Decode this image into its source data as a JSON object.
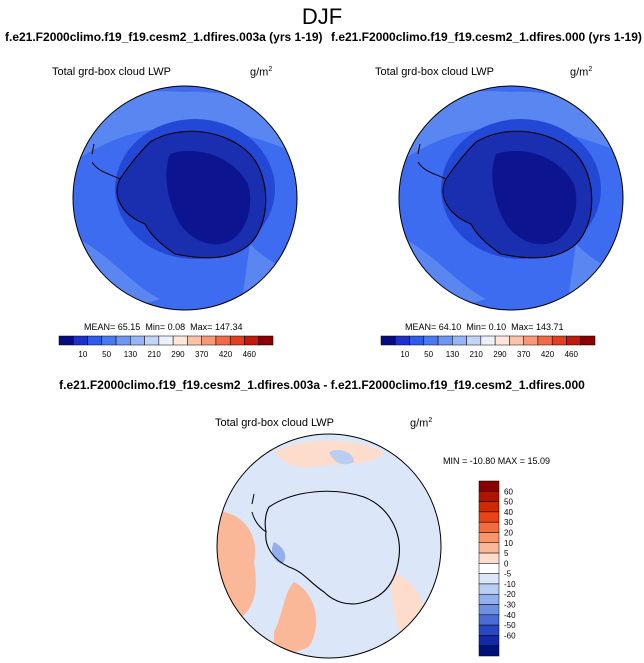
{
  "title": "DJF",
  "panels": {
    "left": {
      "case": "f.e21.F2000climo.f19_f19.cesm2_1.dfires.003a (yrs 1-19)",
      "variable": "Total grd-box cloud LWP",
      "units_base": "g/m",
      "units_exp": "2",
      "mean_label": "MEAN=",
      "mean": "65.15",
      "min_label": "Min=",
      "min": "0.08",
      "max_label": "Max=",
      "max": "147.34"
    },
    "right": {
      "case": "f.e21.F2000climo.f19_f19.cesm2_1.dfires.000 (yrs 1-19)",
      "variable": "Total grd-box cloud LWP",
      "units_base": "g/m",
      "units_exp": "2",
      "mean_label": "MEAN=",
      "mean": "64.10",
      "min_label": "Min=",
      "min": "0.10",
      "max_label": "Max=",
      "max": "143.71"
    },
    "diff": {
      "case": "f.e21.F2000climo.f19_f19.cesm2_1.dfires.003a - f.e21.F2000climo.f19_f19.cesm2_1.dfires.000",
      "variable": "Total grd-box cloud LWP",
      "units_base": "g/m",
      "units_exp": "2",
      "stats": "MIN = -10.80 MAX =  15.09"
    }
  },
  "chart_data": [
    {
      "type": "heatmap",
      "projection": "south-polar stereographic",
      "title": "Total grd-box cloud LWP",
      "colorbar": {
        "orientation": "horizontal",
        "levels": [
          "10",
          "50",
          "130",
          "210",
          "290",
          "370",
          "420",
          "460"
        ],
        "colors": [
          "#0a0a80",
          "#1e30c8",
          "#2f5be8",
          "#4a78f0",
          "#6d95f2",
          "#97b4f4",
          "#c3d4f6",
          "#ecf0f8",
          "#fde6dc",
          "#fbc2aa",
          "#f79878",
          "#f06a48",
          "#e04020",
          "#c01a0a",
          "#8a0000"
        ]
      },
      "stats": {
        "mean": 65.15,
        "min": 0.08,
        "max": 147.34
      }
    },
    {
      "type": "heatmap",
      "projection": "south-polar stereographic",
      "title": "Total grd-box cloud LWP",
      "colorbar": {
        "orientation": "horizontal",
        "levels": [
          "10",
          "50",
          "130",
          "210",
          "290",
          "370",
          "420",
          "460"
        ],
        "colors": [
          "#0a0a80",
          "#1e30c8",
          "#2f5be8",
          "#4a78f0",
          "#6d95f2",
          "#97b4f4",
          "#c3d4f6",
          "#ecf0f8",
          "#fde6dc",
          "#fbc2aa",
          "#f79878",
          "#f06a48",
          "#e04020",
          "#c01a0a",
          "#8a0000"
        ]
      },
      "stats": {
        "mean": 64.1,
        "min": 0.1,
        "max": 143.71
      }
    },
    {
      "type": "heatmap",
      "projection": "south-polar stereographic",
      "title": "Total grd-box cloud LWP",
      "colorbar": {
        "orientation": "vertical",
        "levels": [
          "60",
          "50",
          "40",
          "30",
          "20",
          "10",
          "5",
          "0",
          "-5",
          "-10",
          "-20",
          "-30",
          "-40",
          "-50",
          "-60"
        ],
        "colors": [
          "#8b0000",
          "#b01400",
          "#d02800",
          "#e84418",
          "#f26c40",
          "#f8956c",
          "#fbb898",
          "#fddccb",
          "#ffffff",
          "#dbe6f8",
          "#b9cdf2",
          "#93b0ec",
          "#6f8fe0",
          "#4a6cd6",
          "#2a46c6",
          "#1228a8",
          "#00127a"
        ]
      },
      "stats": {
        "min": -10.8,
        "max": 15.09
      }
    }
  ]
}
